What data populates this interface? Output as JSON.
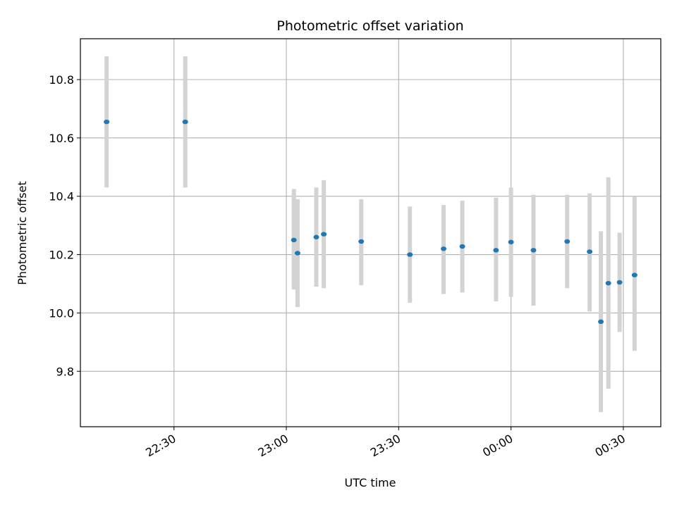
{
  "chart_data": {
    "type": "scatter",
    "title": "Photometric offset variation",
    "xlabel": "UTC time",
    "ylabel": "Photometric offset",
    "x_ticks": [
      "22:30",
      "23:00",
      "23:30",
      "00:00",
      "00:30"
    ],
    "y_ticks": [
      "9.8",
      "10.0",
      "10.2",
      "10.4",
      "10.6",
      "10.8"
    ],
    "xlim": [
      "22:05",
      "00:40"
    ],
    "ylim": [
      9.61,
      10.94
    ],
    "grid": true,
    "marker_color": "#1f77b4",
    "errorbar_color": "#d3d3d3",
    "points": [
      {
        "time": "22:12",
        "y": 10.655,
        "low": 10.43,
        "high": 10.88
      },
      {
        "time": "22:33",
        "y": 10.655,
        "low": 10.43,
        "high": 10.88
      },
      {
        "time": "23:02",
        "y": 10.25,
        "low": 10.08,
        "high": 10.425
      },
      {
        "time": "23:03",
        "y": 10.205,
        "low": 10.02,
        "high": 10.39
      },
      {
        "time": "23:08",
        "y": 10.26,
        "low": 10.09,
        "high": 10.43
      },
      {
        "time": "23:10",
        "y": 10.27,
        "low": 10.085,
        "high": 10.455
      },
      {
        "time": "23:20",
        "y": 10.245,
        "low": 10.095,
        "high": 10.39
      },
      {
        "time": "23:33",
        "y": 10.2,
        "low": 10.035,
        "high": 10.365
      },
      {
        "time": "23:42",
        "y": 10.22,
        "low": 10.065,
        "high": 10.37
      },
      {
        "time": "23:47",
        "y": 10.228,
        "low": 10.07,
        "high": 10.385
      },
      {
        "time": "23:56",
        "y": 10.215,
        "low": 10.04,
        "high": 10.395
      },
      {
        "time": "00:00",
        "y": 10.243,
        "low": 10.055,
        "high": 10.43
      },
      {
        "time": "00:06",
        "y": 10.215,
        "low": 10.025,
        "high": 10.405
      },
      {
        "time": "00:15",
        "y": 10.245,
        "low": 10.085,
        "high": 10.405
      },
      {
        "time": "00:21",
        "y": 10.21,
        "low": 10.005,
        "high": 10.41
      },
      {
        "time": "00:24",
        "y": 9.97,
        "low": 9.66,
        "high": 10.28
      },
      {
        "time": "00:26",
        "y": 10.102,
        "low": 9.74,
        "high": 10.465
      },
      {
        "time": "00:29",
        "y": 10.105,
        "low": 9.935,
        "high": 10.275
      },
      {
        "time": "00:33",
        "y": 10.13,
        "low": 9.87,
        "high": 10.4
      }
    ]
  }
}
